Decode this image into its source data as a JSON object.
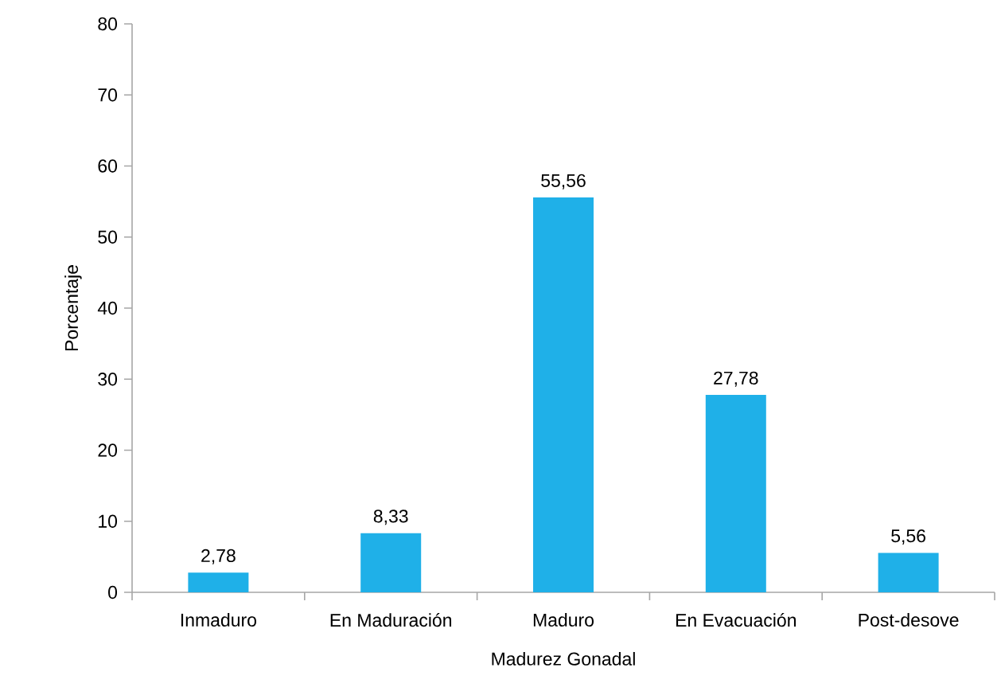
{
  "chart_data": {
    "type": "bar",
    "xlabel": "Madurez Gonadal",
    "ylabel": "Porcentaje",
    "categories": [
      "Inmaduro",
      "En Maduración",
      "Maduro",
      "En Evacuación",
      "Post-desove"
    ],
    "values": [
      2.78,
      8.33,
      55.56,
      27.78,
      5.56
    ],
    "value_labels": [
      "2,78",
      "8,33",
      "55,56",
      "27,78",
      "5,56"
    ],
    "color": "#1fb0e8",
    "ylim": [
      0,
      80
    ],
    "yticks": [
      0,
      10,
      20,
      30,
      40,
      50,
      60,
      70,
      80
    ],
    "grid": false
  }
}
